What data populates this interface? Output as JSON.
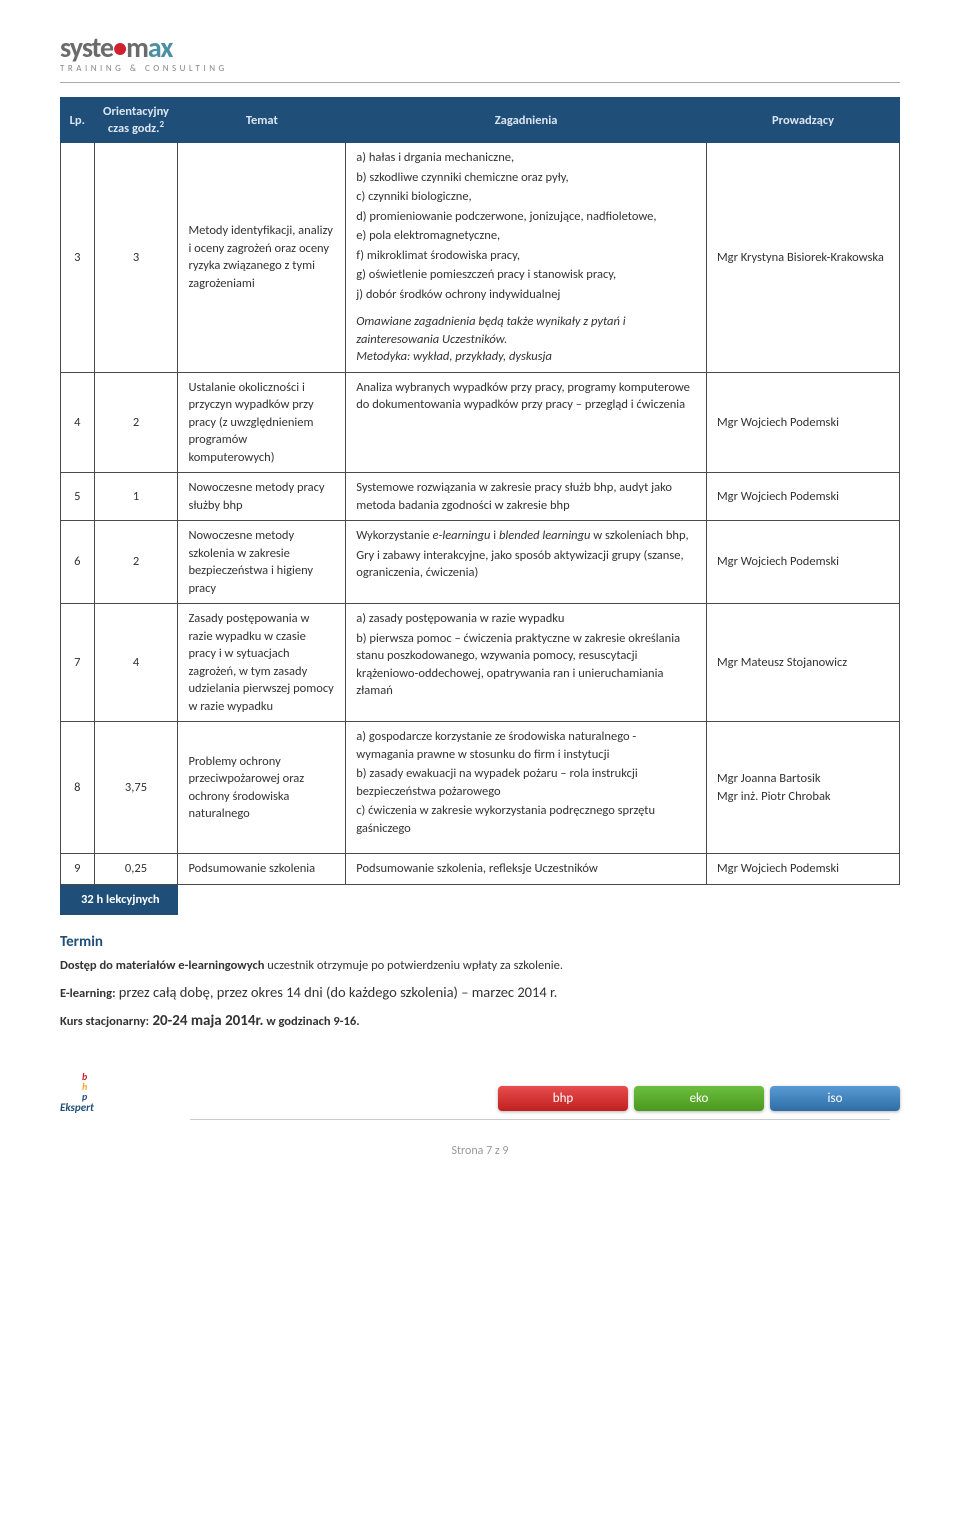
{
  "logo": {
    "main_pre": "syste",
    "main_mid": "m",
    "main_post": "ax",
    "sub": "TRAINING & CONSULTING"
  },
  "table": {
    "headers": {
      "lp": "Lp.",
      "time": "Orientacyjny czas godz.",
      "time_sup": "2",
      "topic": "Temat",
      "issues": "Zagadnienia",
      "lead": "Prowadzący"
    },
    "rows": [
      {
        "lp": "3",
        "time": "3",
        "topic": "Metody identyfikacji, analizy i oceny zagrożeń oraz oceny ryzyka związanego z tymi zagrożeniami",
        "issues_lines": [
          "a) hałas i drgania mechaniczne,",
          "b) szkodliwe czynniki chemiczne oraz pyły,",
          "c) czynniki biologiczne,",
          "d) promieniowanie podczerwone, jonizujące, nadfioletowe,",
          "e) pola elektromagnetyczne,",
          "f) mikroklimat środowiska pracy,",
          "g) oświetlenie pomieszczeń pracy i stanowisk pracy,",
          "j) dobór środków ochrony indywidualnej"
        ],
        "issues_italic": "Omawiane zagadnienia będą także wynikały z pytań i zainteresowania Uczestników.",
        "issues_italic2": "Metodyka: wykład, przykłady, dyskusja",
        "lead": "Mgr Krystyna Bisiorek-Krakowska"
      },
      {
        "lp": "4",
        "time": "2",
        "topic": "Ustalanie okoliczności i przyczyn wypadków przy pracy (z uwzględnieniem programów komputerowych)",
        "issues_text": "Analiza wybranych wypadków przy pracy, programy komputerowe do dokumentowania wypadków przy pracy – przegląd i  ćwiczenia",
        "lead": "Mgr Wojciech Podemski"
      },
      {
        "lp": "5",
        "time": "1",
        "topic": "Nowoczesne metody pracy służby bhp",
        "issues_text": "Systemowe rozwiązania w zakresie pracy służb bhp, audyt jako metoda badania zgodności w zakresie bhp",
        "lead": "Mgr Wojciech Podemski"
      },
      {
        "lp": "6",
        "time": "2",
        "topic": "Nowoczesne metody szkolenia w zakresie bezpieczeństwa i higieny pracy",
        "issues_lines": [
          "Wykorzystanie e-learningu i blended learningu w szkoleniach bhp,",
          "Gry i zabawy interakcyjne, jako sposób aktywizacji grupy (szanse, ograniczenia, ćwiczenia)"
        ],
        "lead": "Mgr Wojciech Podemski"
      },
      {
        "lp": "7",
        "time": "4",
        "topic": "Zasady postępowania w razie wypadku w czasie pracy i w sytuacjach zagrożeń, w tym zasady udzielania pierwszej pomocy w razie wypadku",
        "issues_lines": [
          "a) zasady postępowania w razie wypadku",
          "b) pierwsza pomoc – ćwiczenia praktyczne w zakresie określania stanu poszkodowanego, wzywania pomocy, resuscytacji krążeniowo-oddechowej, opatrywania ran i unieruchamiania złamań"
        ],
        "lead": "Mgr Mateusz Stojanowicz"
      },
      {
        "lp": "8",
        "time": "3,75",
        "topic": "Problemy ochrony przeciwpożarowej oraz ochrony środowiska naturalnego",
        "issues_lines": [
          "a) gospodarcze korzystanie ze środowiska naturalnego  - wymagania prawne w stosunku do firm i instytucji",
          "b) zasady ewakuacji na wypadek pożaru – rola instrukcji bezpieczeństwa pożarowego",
          "c) ćwiczenia w zakresie wykorzystania podręcznego sprzętu gaśniczego"
        ],
        "lead_lines": [
          "Mgr Joanna Bartosik",
          "Mgr inż. Piotr Chrobak"
        ]
      },
      {
        "lp": "9",
        "time": "0,25",
        "topic": "Podsumowanie szkolenia",
        "issues_text": "Podsumowanie szkolenia, refleksje Uczestników",
        "lead": "Mgr Wojciech Podemski"
      }
    ],
    "total": "32 h lekcyjnych"
  },
  "sections": {
    "termin_heading": "Termin",
    "termin_p1_bold": "Dostęp do materiałów e-learningowych",
    "termin_p1_rest": " uczestnik otrzymuje po potwierdzeniu wpłaty za szkolenie.",
    "termin_p2_bold": "E-learning:",
    "termin_p2_rest": " przez całą dobę, przez okres 14 dni (do każdego szkolenia) – marzec 2014 r.",
    "termin_p3_bold1": "Kurs stacjonarny:",
    "termin_p3_bold2": " 20-24 maja 2014r.",
    "termin_p3_bold3": " w godzinach 9-16."
  },
  "footer": {
    "logo_b": "b",
    "logo_h": "h",
    "logo_p": "p",
    "logo_word": "Ekspert",
    "btn1": "bhp",
    "btn2": "eko",
    "btn3": "iso",
    "page": "Strona 7 z 9"
  },
  "colors": {
    "header_bg": "#1f4e79",
    "header_fg": "#dbe5f1",
    "accent_heading": "#1f4e79"
  }
}
